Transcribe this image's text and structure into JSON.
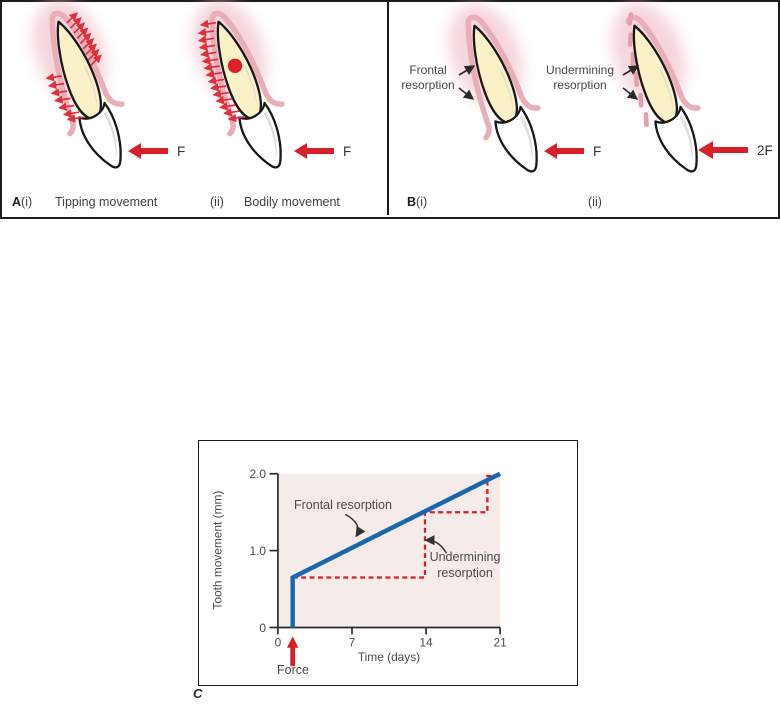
{
  "figure": {
    "panels": {
      "a": {
        "letter": "A",
        "i_label": "(i)",
        "i_caption": "Tipping movement",
        "i_force": "F",
        "ii_label": "(ii)",
        "ii_caption": "Bodily movement",
        "ii_force": "F"
      },
      "b": {
        "letter": "B",
        "i_label": "(i)",
        "i_annotation": "Frontal resorption",
        "i_force": "F",
        "ii_label": "(ii)",
        "ii_annotation": "Undermining resorption",
        "ii_force": "2F"
      },
      "c": {
        "letter": "C"
      }
    }
  },
  "chart_data": {
    "type": "line",
    "title": "",
    "xlabel": "Time (days)",
    "ylabel": "Tooth movement (mm)",
    "xlim": [
      0,
      21
    ],
    "ylim": [
      0,
      2.0
    ],
    "x_ticks": [
      "0",
      "7",
      "14",
      "21"
    ],
    "y_ticks": [
      "0",
      "1.0",
      "2.0"
    ],
    "grid": false,
    "legend": false,
    "plot_bg": "#f5ebe9",
    "force_label": "Force",
    "force_at_day": 1.4,
    "series": [
      {
        "name": "Frontal resorption",
        "color": "#1a67b1",
        "style": "solid",
        "points": [
          [
            1.4,
            0
          ],
          [
            1.4,
            0.65
          ],
          [
            21,
            2.0
          ]
        ]
      },
      {
        "name": "Undermining resorption",
        "color": "#d51f28",
        "style": "dashed",
        "points": [
          [
            1.4,
            0.65
          ],
          [
            13.9,
            0.65
          ],
          [
            13.9,
            1.5
          ],
          [
            19.8,
            1.5
          ],
          [
            19.8,
            1.97
          ],
          [
            21,
            1.97
          ]
        ]
      }
    ]
  },
  "colors": {
    "force_arrow_red": "#d8202b",
    "hatch_red": "#e0313a",
    "center_dot_red": "#dd1f26",
    "root_fill": "#faf2c6",
    "pdl_pink": "#eaaeb8",
    "plot_background": "#f5ebe9",
    "frontal_line_blue": "#1a67b1",
    "undermining_line_red": "#d51f28"
  }
}
